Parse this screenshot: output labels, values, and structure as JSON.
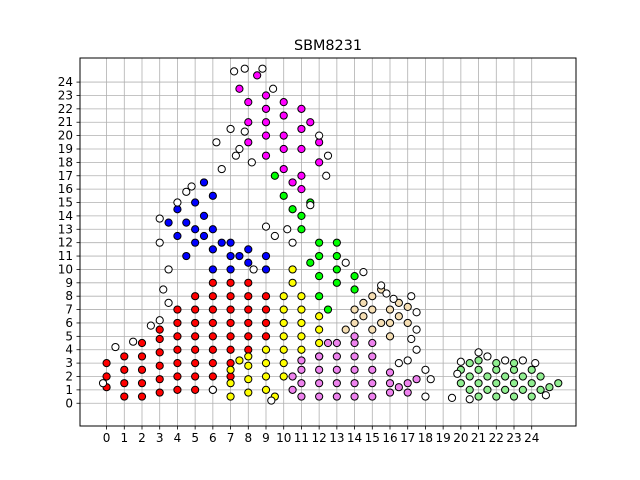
{
  "chart_data": {
    "type": "scatter",
    "title": "SBM8231",
    "xlabel": "",
    "ylabel": "",
    "xlim": [
      -1.5,
      26.5
    ],
    "ylim": [
      -1.7,
      25.8
    ],
    "x_ticks": [
      0,
      1,
      2,
      3,
      4,
      5,
      6,
      7,
      8,
      9,
      10,
      11,
      12,
      13,
      14,
      15,
      16,
      17,
      18,
      19,
      20,
      21,
      22,
      23,
      24
    ],
    "y_ticks": [
      0,
      1,
      2,
      3,
      4,
      5,
      6,
      7,
      8,
      9,
      10,
      11,
      12,
      13,
      14,
      15,
      16,
      17,
      18,
      19,
      20,
      21,
      22,
      23,
      24
    ],
    "x_tick_labels": [
      "0",
      "1",
      "2",
      "3",
      "4",
      "5",
      "6",
      "7",
      "8",
      "9",
      "10",
      "11",
      "12",
      "13",
      "14",
      "15",
      "16",
      "17",
      "18",
      "19",
      "20",
      "21",
      "22",
      "23",
      "24"
    ],
    "y_tick_labels": [
      "0",
      "1",
      "2",
      "3",
      "4",
      "5",
      "6",
      "7",
      "8",
      "9",
      "10",
      "11",
      "12",
      "13",
      "14",
      "15",
      "16",
      "17",
      "18",
      "19",
      "20",
      "21",
      "22",
      "23",
      "24"
    ],
    "grid": true,
    "legend": "none",
    "marker": "circle",
    "marker_edge_color": "#000000",
    "series": [
      {
        "color": "#ff0000",
        "points": [
          [
            0,
            1.2
          ],
          [
            0,
            2
          ],
          [
            0,
            3
          ],
          [
            1,
            0.5
          ],
          [
            1,
            1.5
          ],
          [
            1,
            2.5
          ],
          [
            1,
            3.5
          ],
          [
            2,
            0.5
          ],
          [
            2,
            1.5
          ],
          [
            2,
            2.5
          ],
          [
            2,
            3.5
          ],
          [
            2,
            4.5
          ],
          [
            3,
            0.8
          ],
          [
            3,
            1.8
          ],
          [
            3,
            2.8
          ],
          [
            3,
            3.8
          ],
          [
            3,
            4.8
          ],
          [
            3,
            5.5
          ],
          [
            4,
            1
          ],
          [
            4,
            2
          ],
          [
            4,
            3
          ],
          [
            4,
            4
          ],
          [
            4,
            5
          ],
          [
            4,
            6
          ],
          [
            4,
            7
          ],
          [
            5,
            1
          ],
          [
            5,
            2
          ],
          [
            5,
            3
          ],
          [
            5,
            4
          ],
          [
            5,
            5
          ],
          [
            5,
            6
          ],
          [
            5,
            7
          ],
          [
            5,
            8
          ],
          [
            6,
            1
          ],
          [
            6,
            2
          ],
          [
            6,
            3
          ],
          [
            6,
            4
          ],
          [
            6,
            5
          ],
          [
            6,
            6
          ],
          [
            6,
            7
          ],
          [
            6,
            8
          ],
          [
            6,
            9
          ],
          [
            7,
            2
          ],
          [
            7,
            3
          ],
          [
            7,
            4
          ],
          [
            7,
            5
          ],
          [
            7,
            6
          ],
          [
            7,
            7
          ],
          [
            7,
            8
          ],
          [
            7,
            9
          ],
          [
            8,
            4
          ],
          [
            8,
            5
          ],
          [
            8,
            6
          ],
          [
            8,
            7
          ],
          [
            8,
            8
          ],
          [
            8,
            9
          ],
          [
            9,
            5
          ],
          [
            9,
            6
          ],
          [
            9,
            7
          ],
          [
            9,
            8
          ]
        ]
      },
      {
        "color": "#0000ff",
        "points": [
          [
            3.5,
            13.5
          ],
          [
            4,
            14.5
          ],
          [
            4,
            12.5
          ],
          [
            4.5,
            11
          ],
          [
            5,
            15
          ],
          [
            5,
            13
          ],
          [
            5,
            12
          ],
          [
            5.5,
            16.5
          ],
          [
            5.5,
            14
          ],
          [
            6,
            15.5
          ],
          [
            6,
            13
          ],
          [
            6,
            11.5
          ],
          [
            6,
            10
          ],
          [
            7,
            12
          ],
          [
            7,
            11
          ],
          [
            7,
            10
          ],
          [
            8,
            11.5
          ],
          [
            8,
            10.5
          ],
          [
            9,
            11
          ],
          [
            9,
            10
          ],
          [
            4.5,
            13.5
          ],
          [
            5.5,
            12.5
          ],
          [
            6.5,
            12
          ],
          [
            7.5,
            11
          ]
        ]
      },
      {
        "color": "#ff00ff",
        "points": [
          [
            7.5,
            23.5
          ],
          [
            8,
            22.5
          ],
          [
            8,
            21
          ],
          [
            8,
            19.5
          ],
          [
            8.5,
            24.5
          ],
          [
            9,
            23
          ],
          [
            9,
            22
          ],
          [
            9,
            21
          ],
          [
            9,
            20
          ],
          [
            9,
            18.5
          ],
          [
            10,
            22.5
          ],
          [
            10,
            21.5
          ],
          [
            10,
            20
          ],
          [
            10,
            19
          ],
          [
            10,
            17.5
          ],
          [
            10.5,
            16.5
          ],
          [
            11,
            22
          ],
          [
            11,
            20.5
          ],
          [
            11,
            19
          ],
          [
            11,
            17
          ],
          [
            11,
            16
          ],
          [
            11.5,
            21
          ],
          [
            12,
            19.5
          ],
          [
            12,
            18
          ]
        ]
      },
      {
        "color": "#00ff00",
        "points": [
          [
            9.5,
            17
          ],
          [
            10,
            15.5
          ],
          [
            10.5,
            14.5
          ],
          [
            11,
            14
          ],
          [
            11,
            13
          ],
          [
            11.5,
            15
          ],
          [
            12,
            12
          ],
          [
            12,
            11
          ],
          [
            13,
            12
          ],
          [
            13,
            11
          ],
          [
            13,
            10
          ],
          [
            14,
            9.5
          ],
          [
            14,
            8.5
          ],
          [
            13,
            9
          ],
          [
            12,
            9.5
          ],
          [
            12,
            8
          ],
          [
            12.5,
            7
          ],
          [
            11.5,
            10.5
          ]
        ]
      },
      {
        "color": "#ffff00",
        "points": [
          [
            7,
            0.5
          ],
          [
            7,
            1.5
          ],
          [
            7,
            2.5
          ],
          [
            7.5,
            3.2
          ],
          [
            8,
            0.8
          ],
          [
            8,
            1.8
          ],
          [
            8,
            2.8
          ],
          [
            8,
            3.5
          ],
          [
            9,
            1
          ],
          [
            9,
            2
          ],
          [
            9,
            3
          ],
          [
            9,
            4
          ],
          [
            9.5,
            0.5
          ],
          [
            10,
            2
          ],
          [
            10,
            3
          ],
          [
            10,
            4
          ],
          [
            10,
            5
          ],
          [
            10,
            6
          ],
          [
            10,
            7
          ],
          [
            10,
            8
          ],
          [
            10.5,
            9
          ],
          [
            10.5,
            10
          ],
          [
            11,
            4
          ],
          [
            11,
            5
          ],
          [
            11,
            6
          ],
          [
            11,
            7
          ],
          [
            11,
            8
          ],
          [
            12,
            3.5
          ],
          [
            12,
            4.5
          ],
          [
            12,
            5.5
          ],
          [
            12,
            6.5
          ]
        ]
      },
      {
        "color": "#ee82ee",
        "points": [
          [
            10.5,
            1
          ],
          [
            10.5,
            2
          ],
          [
            11,
            0.5
          ],
          [
            11,
            1.5
          ],
          [
            11,
            2.5
          ],
          [
            11,
            3.2
          ],
          [
            12,
            0.5
          ],
          [
            12,
            1.5
          ],
          [
            12,
            2.5
          ],
          [
            12,
            3.5
          ],
          [
            12.5,
            4.5
          ],
          [
            13,
            0.5
          ],
          [
            13,
            1.5
          ],
          [
            13,
            2.5
          ],
          [
            13,
            3.5
          ],
          [
            13,
            4.5
          ],
          [
            14,
            0.5
          ],
          [
            14,
            1.5
          ],
          [
            14,
            2.5
          ],
          [
            14,
            3.5
          ],
          [
            14,
            4.5
          ],
          [
            14,
            5
          ],
          [
            15,
            0.5
          ],
          [
            15,
            1.5
          ],
          [
            15,
            2.5
          ],
          [
            15,
            3.5
          ],
          [
            15,
            4.5
          ],
          [
            16,
            0.8
          ],
          [
            16,
            1.5
          ],
          [
            16,
            2.3
          ],
          [
            16.5,
            1.2
          ],
          [
            17,
            1.5
          ],
          [
            17,
            0.8
          ],
          [
            17.5,
            1.8
          ]
        ]
      },
      {
        "color": "#f5deb3",
        "points": [
          [
            13.5,
            5.5
          ],
          [
            14,
            6
          ],
          [
            14.5,
            6.5
          ],
          [
            14.5,
            7.5
          ],
          [
            15,
            5.5
          ],
          [
            15,
            7
          ],
          [
            15,
            8
          ],
          [
            15.5,
            6
          ],
          [
            15.5,
            8.5
          ],
          [
            16,
            7
          ],
          [
            16,
            6
          ],
          [
            16,
            5
          ],
          [
            16.5,
            7.5
          ],
          [
            16.5,
            6.5
          ],
          [
            17,
            7.2
          ],
          [
            17,
            6
          ],
          [
            14,
            7
          ]
        ]
      },
      {
        "color": "#90ee90",
        "points": [
          [
            20,
            1.5
          ],
          [
            20,
            2.5
          ],
          [
            20.5,
            1
          ],
          [
            20.5,
            2
          ],
          [
            20.5,
            3
          ],
          [
            21,
            0.5
          ],
          [
            21,
            1.5
          ],
          [
            21,
            2.5
          ],
          [
            21,
            3.2
          ],
          [
            21.5,
            1
          ],
          [
            21.5,
            2
          ],
          [
            22,
            0.5
          ],
          [
            22,
            1.5
          ],
          [
            22,
            2.5
          ],
          [
            22,
            3
          ],
          [
            22.5,
            1
          ],
          [
            22.5,
            2
          ],
          [
            23,
            0.5
          ],
          [
            23,
            1.5
          ],
          [
            23,
            2.5
          ],
          [
            23,
            3
          ],
          [
            23.5,
            1
          ],
          [
            23.5,
            2
          ],
          [
            24,
            0.5
          ],
          [
            24,
            1.5
          ],
          [
            24,
            2.5
          ],
          [
            24.5,
            1
          ],
          [
            24.5,
            2
          ],
          [
            25,
            1.2
          ],
          [
            25.5,
            1.5
          ]
        ]
      },
      {
        "color": "#ffffff",
        "points": [
          [
            -0.2,
            1.5
          ],
          [
            0.5,
            4.2
          ],
          [
            1.5,
            4.6
          ],
          [
            2.5,
            5.8
          ],
          [
            3,
            6.2
          ],
          [
            3.5,
            7.5
          ],
          [
            3.2,
            8.5
          ],
          [
            3.5,
            10
          ],
          [
            3,
            12
          ],
          [
            3,
            13.8
          ],
          [
            4,
            15
          ],
          [
            4.5,
            15.8
          ],
          [
            4.8,
            16.2
          ],
          [
            6.5,
            17.5
          ],
          [
            6.2,
            19.5
          ],
          [
            7,
            20.5
          ],
          [
            7.5,
            19
          ],
          [
            7.3,
            18.5
          ],
          [
            7.8,
            20.3
          ],
          [
            8.2,
            18
          ],
          [
            7.8,
            25
          ],
          [
            7.2,
            24.8
          ],
          [
            8.8,
            25
          ],
          [
            9.4,
            23.5
          ],
          [
            12,
            20
          ],
          [
            12.5,
            18.5
          ],
          [
            12.4,
            17
          ],
          [
            11.5,
            14.8
          ],
          [
            10.2,
            13
          ],
          [
            9.5,
            12.5
          ],
          [
            10.5,
            12
          ],
          [
            9,
            13.2
          ],
          [
            8.3,
            10
          ],
          [
            13.5,
            10.5
          ],
          [
            14.5,
            9.8
          ],
          [
            15.5,
            8.8
          ],
          [
            15.8,
            8.2
          ],
          [
            16.2,
            7.8
          ],
          [
            17.2,
            8
          ],
          [
            17.5,
            6.8
          ],
          [
            17.5,
            5.5
          ],
          [
            17.2,
            4.8
          ],
          [
            17.5,
            4
          ],
          [
            17,
            3.2
          ],
          [
            16.5,
            3
          ],
          [
            18,
            2.5
          ],
          [
            18.3,
            1.8
          ],
          [
            18,
            0.5
          ],
          [
            19.5,
            0.4
          ],
          [
            20,
            3.1
          ],
          [
            19.8,
            2.2
          ],
          [
            20.5,
            0.3
          ],
          [
            21,
            3.8
          ],
          [
            21.5,
            3.5
          ],
          [
            22.5,
            3.2
          ],
          [
            23.5,
            3.2
          ],
          [
            24.2,
            3
          ],
          [
            24.8,
            0.6
          ],
          [
            6,
            1
          ],
          [
            9.3,
            0.2
          ]
        ]
      }
    ]
  }
}
